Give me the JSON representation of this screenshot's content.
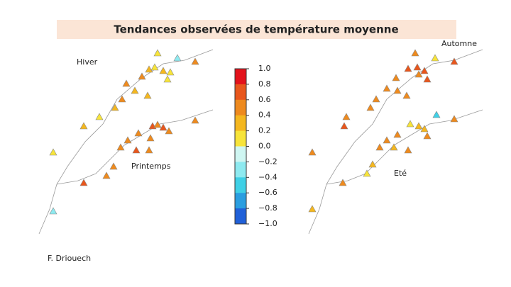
{
  "header": {
    "title": "Tendances observées de température moyenne"
  },
  "panels": [
    {
      "label": "Hiver"
    },
    {
      "label": "Automne"
    },
    {
      "label": "Printemps"
    },
    {
      "label": "Eté"
    }
  ],
  "colorbar": {
    "ticks": [
      {
        "value": 1,
        "label": "1.0"
      },
      {
        "value": 0.8,
        "label": "0.8"
      },
      {
        "value": 0.6,
        "label": "0.6"
      },
      {
        "value": 0.4,
        "label": "0.4"
      },
      {
        "value": 0.2,
        "label": "0.2"
      },
      {
        "value": 0,
        "label": "0.0"
      },
      {
        "value": -0.2,
        "label": "−0.2"
      },
      {
        "value": -0.4,
        "label": "−0.4"
      },
      {
        "value": -0.6,
        "label": "−0.6"
      },
      {
        "value": -0.8,
        "label": "−0.8"
      },
      {
        "value": -1,
        "label": "−1.0"
      }
    ],
    "colors": [
      "#e3121b",
      "#e8561c",
      "#ee8a1e",
      "#f4b71f",
      "#f7e43a",
      "#cff6f2",
      "#8eeaf0",
      "#3fd0e6",
      "#2a9ee0",
      "#2060d8"
    ]
  },
  "credit": "F. Driouech"
}
